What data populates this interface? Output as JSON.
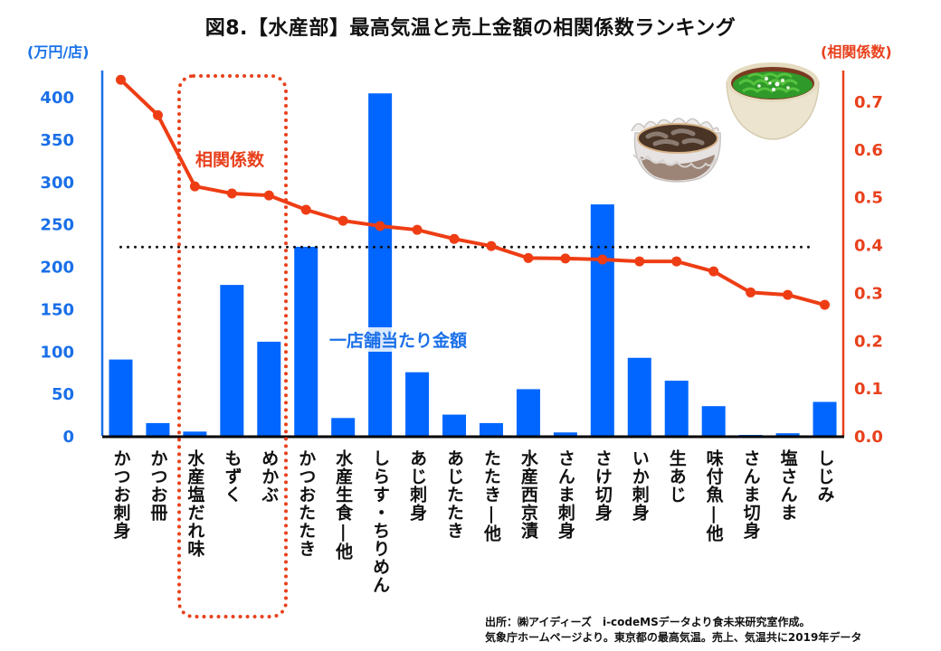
{
  "title": "図8.【水産部】最高気温と売上金額の相関係数ランキング",
  "left_axis_unit": "(万円/店)",
  "right_axis_unit": "(相関係数)",
  "series_labels": {
    "line": "相関係数",
    "bar": "一店舗当たり金額"
  },
  "source": {
    "line1": "出所：㈱アイディーズ　i-codeMSデータより食未来研究室作成。",
    "line2": "気象庁ホームページより。東京都の最高気温。売上、気温共に2019年データ"
  },
  "colors": {
    "bar": "#0066ff",
    "line": "#ee3d14",
    "left_axis": "#1a6fe8",
    "right_axis": "#e8401c",
    "reference_line": "#111111",
    "highlight": "#e8401c"
  },
  "illustrations": [
    "mozuku-bowl-icon",
    "mekabu-bowl-icon"
  ],
  "highlighted_categories": [
    "水産塩だれ味",
    "もずく",
    "めかぶ"
  ],
  "chart_data": {
    "type": "bar+line",
    "title": "図8.【水産部】最高気温と売上金額の相関係数ランキング",
    "categories": [
      "かつお刺身",
      "かつお冊",
      "水産塩だれ味",
      "もずく",
      "めかぶ",
      "かつおたたき",
      "水産生食|他",
      "しらす・ちりめん",
      "あじ刺身",
      "あじたたき",
      "たたき|他",
      "水産西京漬",
      "さんま刺身",
      "さけ切身",
      "いか刺身",
      "生あじ",
      "味付魚|他",
      "さんま切身",
      "塩さんま",
      "しじみ"
    ],
    "series": [
      {
        "name": "一店舗当たり金額",
        "type": "bar",
        "axis": "left",
        "values": [
          90,
          15,
          5,
          178,
          111,
          223,
          21,
          404,
          75,
          25,
          15,
          55,
          4,
          273,
          92,
          65,
          35,
          1,
          3,
          40
        ]
      },
      {
        "name": "相関係数",
        "type": "line",
        "axis": "right",
        "values": [
          0.745,
          0.671,
          0.522,
          0.507,
          0.503,
          0.473,
          0.45,
          0.439,
          0.431,
          0.412,
          0.397,
          0.372,
          0.371,
          0.369,
          0.365,
          0.365,
          0.344,
          0.3,
          0.295,
          0.274
        ]
      }
    ],
    "reference_line": {
      "axis": "right",
      "value": 0.395,
      "style": "dotted"
    },
    "left_axis": {
      "label": "(万円/店)",
      "ylim": [
        0,
        400
      ],
      "ticks": [
        "0",
        "50",
        "100",
        "150",
        "200",
        "250",
        "300",
        "350",
        "400"
      ]
    },
    "right_axis": {
      "label": "(相関係数)",
      "ylim": [
        0,
        0.7
      ],
      "ticks": [
        "0.0",
        "0.1",
        "0.2",
        "0.3",
        "0.4",
        "0.5",
        "0.6",
        "0.7"
      ]
    },
    "grid": false,
    "legend": "none (inline labels)"
  }
}
